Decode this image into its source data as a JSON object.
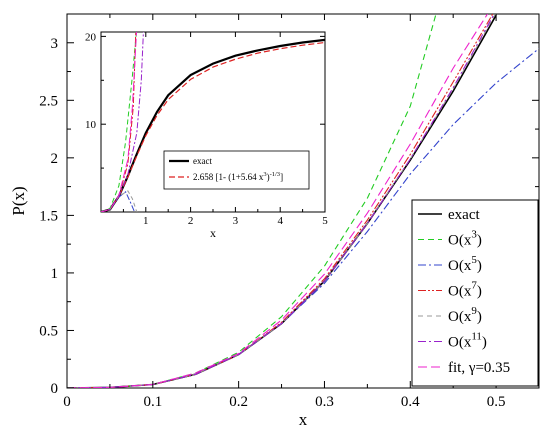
{
  "chart_data": [
    {
      "type": "line",
      "xlabel": "x",
      "ylabel": "P(x)",
      "xlim": [
        0,
        0.55
      ],
      "ylim": [
        0,
        3.25
      ],
      "x_ticks": [
        "0",
        "0.1",
        "0.2",
        "0.3",
        "0.4",
        "0.5"
      ],
      "y_ticks": [
        "0",
        "0.5",
        "1",
        "1.5",
        "2",
        "2.5",
        "3"
      ],
      "legend_position": "bottom-right",
      "series": [
        {
          "name": "exact",
          "color": "#000000",
          "dash": "solid",
          "legend": {
            "text": "exact",
            "sup": ""
          },
          "x": [
            0,
            0.05,
            0.1,
            0.15,
            0.2,
            0.25,
            0.3,
            0.35,
            0.4,
            0.45,
            0.5
          ],
          "y": [
            0,
            0.005,
            0.03,
            0.12,
            0.29,
            0.56,
            0.93,
            1.43,
            1.98,
            2.58,
            3.24
          ]
        },
        {
          "name": "O(x3)",
          "color": "#22cc22",
          "dash": "6,4",
          "legend": {
            "text": "O(x",
            "sup": "3",
            "close": ")"
          },
          "x": [
            0,
            0.05,
            0.1,
            0.15,
            0.2,
            0.25,
            0.3,
            0.35,
            0.4,
            0.43
          ],
          "y": [
            0,
            0.005,
            0.03,
            0.13,
            0.31,
            0.62,
            1.06,
            1.65,
            2.45,
            3.25
          ]
        },
        {
          "name": "O(x5)",
          "color": "#3344cc",
          "dash": "8,3,2,3",
          "legend": {
            "text": "O(x",
            "sup": "5",
            "close": ")"
          },
          "x": [
            0,
            0.05,
            0.1,
            0.15,
            0.2,
            0.25,
            0.3,
            0.35,
            0.4,
            0.45,
            0.5,
            0.55
          ],
          "y": [
            0,
            0.005,
            0.03,
            0.12,
            0.29,
            0.56,
            0.91,
            1.36,
            1.86,
            2.29,
            2.65,
            2.95
          ]
        },
        {
          "name": "O(x7)",
          "color": "#dd2222",
          "dash": "8,2,2,2,2,2",
          "legend": {
            "text": "O(x",
            "sup": "7",
            "close": ")"
          },
          "x": [
            0,
            0.05,
            0.1,
            0.15,
            0.2,
            0.25,
            0.3,
            0.35,
            0.4,
            0.45,
            0.5
          ],
          "y": [
            0,
            0.005,
            0.03,
            0.12,
            0.29,
            0.57,
            0.95,
            1.46,
            2.03,
            2.66,
            3.3
          ]
        },
        {
          "name": "O(x9)",
          "color": "#999999",
          "dash": "5,4",
          "legend": {
            "text": "O(x",
            "sup": "9",
            "close": ")"
          },
          "x": [
            0,
            0.05,
            0.1,
            0.15,
            0.2,
            0.25,
            0.3,
            0.35,
            0.4,
            0.45,
            0.5
          ],
          "y": [
            0,
            0.005,
            0.03,
            0.12,
            0.29,
            0.56,
            0.93,
            1.43,
            1.99,
            2.6,
            3.26
          ]
        },
        {
          "name": "O(x11)",
          "color": "#9922cc",
          "dash": "8,3,2,3",
          "legend": {
            "text": "O(x",
            "sup": "11",
            "close": ")"
          },
          "x": [
            0,
            0.05,
            0.1,
            0.15,
            0.2,
            0.25,
            0.3,
            0.35,
            0.4,
            0.45,
            0.5
          ],
          "y": [
            0,
            0.005,
            0.03,
            0.12,
            0.29,
            0.56,
            0.93,
            1.43,
            1.99,
            2.61,
            3.28
          ]
        },
        {
          "name": "fit, γ=0.35",
          "color": "#ee22cc",
          "dash": "9,4",
          "legend": {
            "text": "fit, γ=0.35",
            "sup": ""
          },
          "x": [
            0,
            0.05,
            0.1,
            0.15,
            0.2,
            0.25,
            0.3,
            0.35,
            0.4,
            0.45,
            0.49
          ],
          "y": [
            0,
            0.005,
            0.03,
            0.13,
            0.3,
            0.59,
            0.99,
            1.52,
            2.12,
            2.78,
            3.25
          ]
        }
      ]
    },
    {
      "type": "line",
      "inset": true,
      "xlabel": "x",
      "xlim": [
        0,
        5
      ],
      "ylim": [
        0,
        20.5
      ],
      "x_ticks": [
        "1",
        "2",
        "3",
        "4",
        "5"
      ],
      "y_ticks": [
        "10",
        "20"
      ],
      "legend_position": "center-right",
      "series": [
        {
          "name": "exact",
          "color": "#000000",
          "dash": "solid",
          "width": 2.2,
          "legend": {
            "text": "exact"
          },
          "x": [
            0,
            0.2,
            0.4,
            0.6,
            0.8,
            1,
            1.25,
            1.5,
            2,
            2.5,
            3,
            3.5,
            4,
            4.5,
            5
          ],
          "y": [
            0,
            0.3,
            1.8,
            4.1,
            6.6,
            9.0,
            11.4,
            13.3,
            15.6,
            16.9,
            17.8,
            18.4,
            18.9,
            19.3,
            19.6
          ]
        },
        {
          "name": "2.658 [1- (1+5.64 x3)-1/3]",
          "color": "#dd2222",
          "dash": "6,3",
          "width": 1.2,
          "legend": {
            "text": "2.658 [1- (1+5.64 x",
            "sup": "3",
            "mid": ")",
            "sup2": "-1/3",
            "close": "]"
          },
          "x": [
            0,
            0.2,
            0.4,
            0.6,
            0.8,
            1,
            1.25,
            1.5,
            2,
            2.5,
            3,
            3.5,
            4,
            4.5,
            5
          ],
          "y": [
            0,
            0.3,
            1.8,
            4.0,
            6.4,
            8.7,
            11.0,
            12.8,
            15.1,
            16.5,
            17.4,
            18.1,
            18.6,
            19.0,
            19.3
          ]
        },
        {
          "name": "O(x3)",
          "color": "#22cc22",
          "dash": "5,3",
          "width": 1,
          "x": [
            0,
            0.2,
            0.4,
            0.55,
            0.7,
            0.8
          ],
          "y": [
            0,
            0.4,
            3.0,
            8.0,
            15.5,
            21.0
          ]
        },
        {
          "name": "O(x5)",
          "color": "#3344cc",
          "dash": "6,2,2,2",
          "width": 1,
          "x": [
            0,
            0.2,
            0.4,
            0.55,
            0.65,
            0.75
          ],
          "y": [
            0,
            0.3,
            1.7,
            2.3,
            1.2,
            0.0
          ]
        },
        {
          "name": "O(x7)",
          "color": "#dd2222",
          "dash": "6,2,2,2",
          "width": 1,
          "x": [
            0,
            0.2,
            0.4,
            0.6,
            0.72,
            0.78
          ],
          "y": [
            0,
            0.3,
            1.8,
            5.5,
            12.0,
            21.0
          ]
        },
        {
          "name": "O(x9)",
          "color": "#999999",
          "dash": "4,3",
          "width": 1,
          "x": [
            0,
            0.2,
            0.4,
            0.6,
            0.7,
            0.8
          ],
          "y": [
            0,
            0.3,
            1.8,
            2.4,
            1.5,
            0.0
          ]
        },
        {
          "name": "O(x11)",
          "color": "#9922cc",
          "dash": "6,2,2,2",
          "width": 1,
          "x": [
            0,
            0.2,
            0.4,
            0.6,
            0.8,
            0.9,
            0.95
          ],
          "y": [
            0,
            0.3,
            1.8,
            4.3,
            9.0,
            15.0,
            21.0
          ]
        },
        {
          "name": "fit, γ=0.35",
          "color": "#ee22cc",
          "dash": "8,3",
          "width": 1,
          "x": [
            0,
            0.2,
            0.4,
            0.6,
            0.7,
            0.8
          ],
          "y": [
            0,
            0.3,
            1.9,
            6.0,
            12.0,
            21.0
          ]
        }
      ]
    }
  ]
}
